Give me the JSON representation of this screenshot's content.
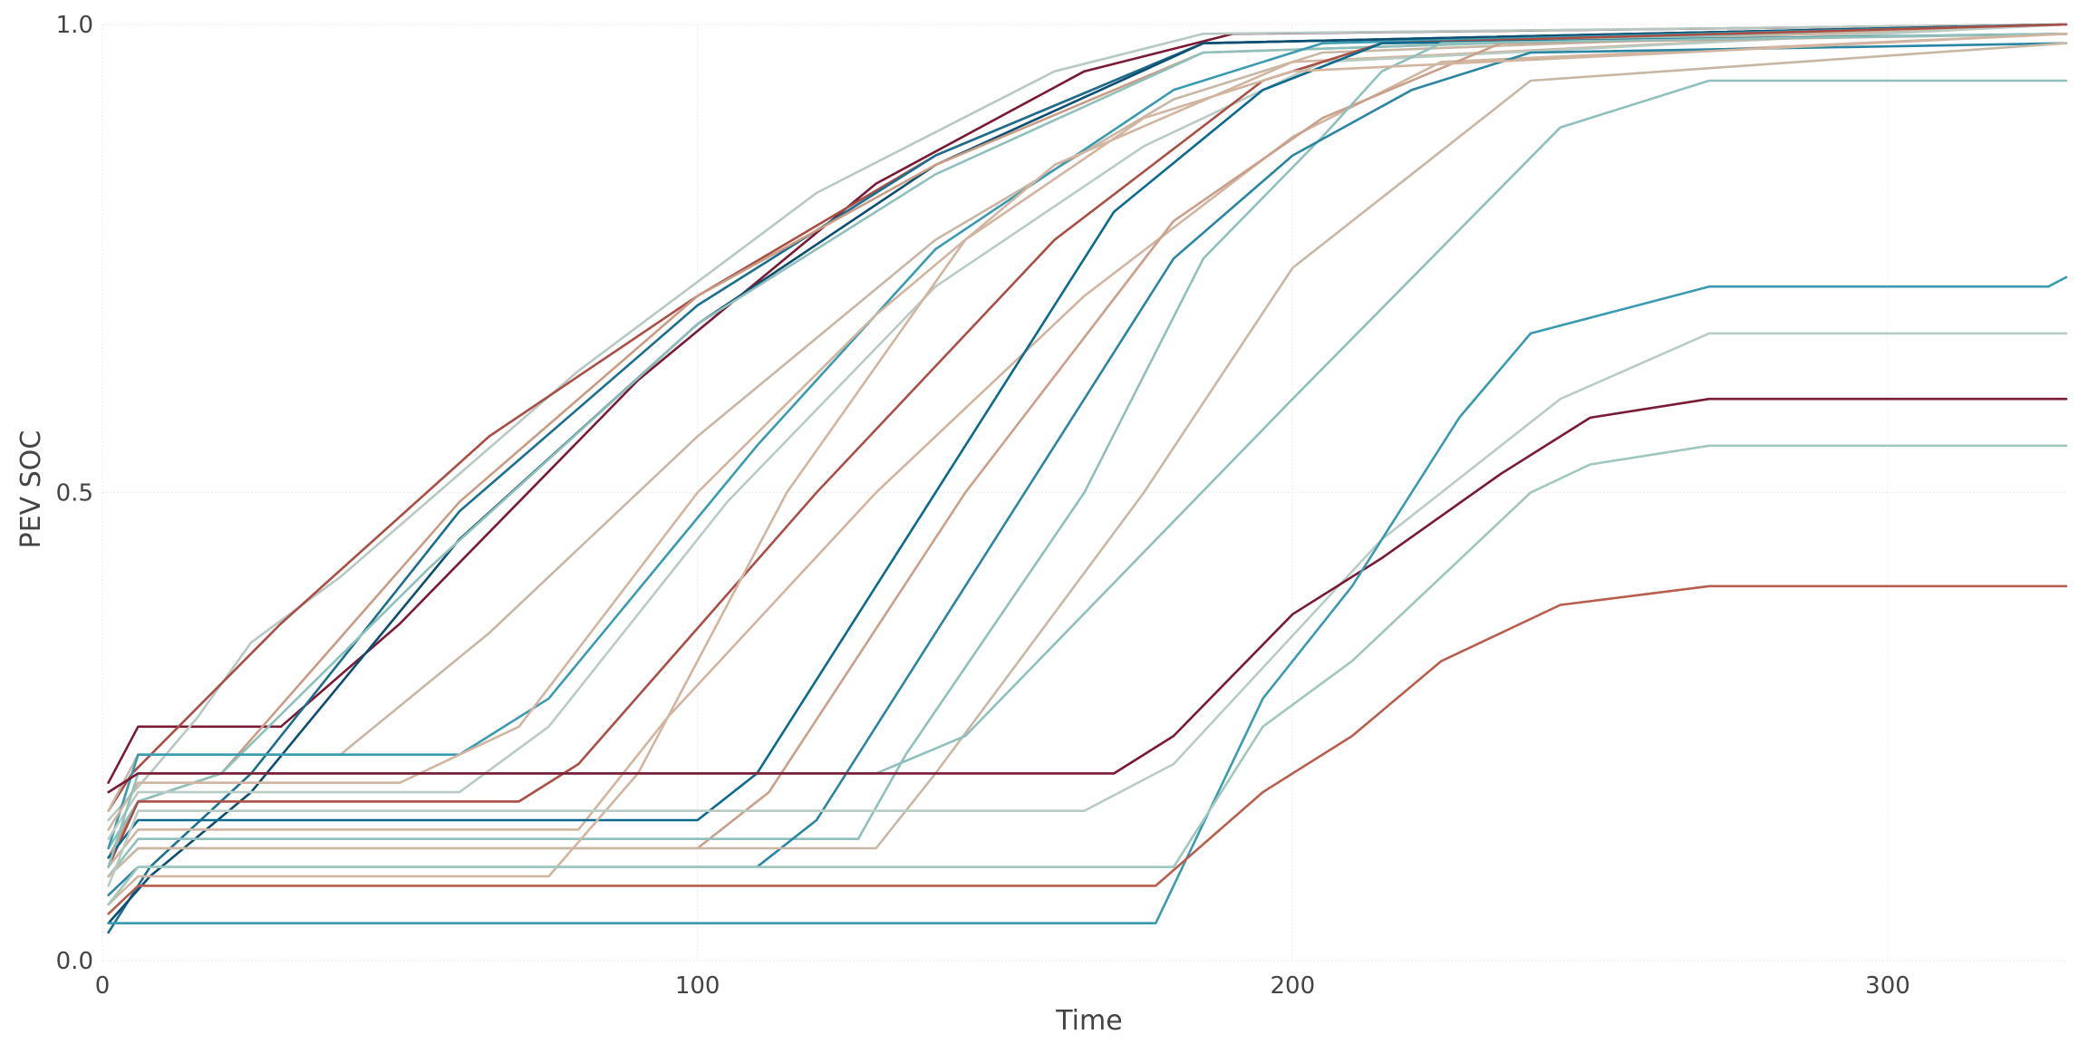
{
  "chart_data": {
    "type": "line",
    "title": "",
    "xlabel": "Time",
    "ylabel": "PEV SOC",
    "xlim": [
      0,
      330
    ],
    "ylim": [
      0,
      1
    ],
    "x_ticks": [
      0,
      100,
      200,
      300
    ],
    "y_ticks": [
      0,
      0.5,
      1
    ],
    "x_tick_labels": [
      "0",
      "100",
      "200",
      "300"
    ],
    "y_tick_labels": [
      "0.0",
      "0.5",
      "1.0"
    ],
    "grid": true,
    "legend": "none",
    "series": [
      {
        "color": "#7a1a35",
        "values": [
          [
            1,
            0.19
          ],
          [
            6,
            0.25
          ],
          [
            30,
            0.25
          ],
          [
            50,
            0.36
          ],
          [
            90,
            0.62
          ],
          [
            130,
            0.83
          ],
          [
            165,
            0.95
          ],
          [
            190,
            0.99
          ],
          [
            330,
            1.0
          ]
        ]
      },
      {
        "color": "#b8c9c2",
        "values": [
          [
            1,
            0.15
          ],
          [
            8,
            0.2
          ],
          [
            16,
            0.26
          ],
          [
            25,
            0.34
          ],
          [
            40,
            0.41
          ],
          [
            80,
            0.63
          ],
          [
            120,
            0.82
          ],
          [
            160,
            0.95
          ],
          [
            185,
            0.99
          ],
          [
            330,
            1.0
          ]
        ]
      },
      {
        "color": "#a94f45",
        "values": [
          [
            1,
            0.16
          ],
          [
            5,
            0.2
          ],
          [
            30,
            0.36
          ],
          [
            65,
            0.56
          ],
          [
            100,
            0.71
          ],
          [
            140,
            0.86
          ],
          [
            185,
            0.98
          ],
          [
            330,
            1.0
          ]
        ]
      },
      {
        "color": "#1b6f8f",
        "values": [
          [
            1,
            0.03
          ],
          [
            8,
            0.1
          ],
          [
            25,
            0.2
          ],
          [
            60,
            0.48
          ],
          [
            100,
            0.7
          ],
          [
            140,
            0.86
          ],
          [
            185,
            0.98
          ],
          [
            330,
            1.0
          ]
        ]
      },
      {
        "color": "#0c4f73",
        "values": [
          [
            1,
            0.04
          ],
          [
            8,
            0.09
          ],
          [
            25,
            0.18
          ],
          [
            60,
            0.45
          ],
          [
            100,
            0.68
          ],
          [
            140,
            0.85
          ],
          [
            185,
            0.98
          ],
          [
            330,
            1.0
          ]
        ]
      },
      {
        "color": "#c99c85",
        "values": [
          [
            1,
            0.11
          ],
          [
            6,
            0.17
          ],
          [
            20,
            0.2
          ],
          [
            60,
            0.49
          ],
          [
            100,
            0.71
          ],
          [
            140,
            0.85
          ],
          [
            185,
            0.97
          ],
          [
            330,
            1.0
          ]
        ]
      },
      {
        "color": "#8fc0bb",
        "values": [
          [
            1,
            0.12
          ],
          [
            6,
            0.17
          ],
          [
            20,
            0.2
          ],
          [
            55,
            0.42
          ],
          [
            100,
            0.68
          ],
          [
            140,
            0.84
          ],
          [
            185,
            0.97
          ],
          [
            330,
            1.0
          ]
        ]
      },
      {
        "color": "#c9b7a5",
        "values": [
          [
            1,
            0.16
          ],
          [
            6,
            0.22
          ],
          [
            40,
            0.22
          ],
          [
            65,
            0.35
          ],
          [
            100,
            0.56
          ],
          [
            140,
            0.77
          ],
          [
            180,
            0.92
          ],
          [
            205,
            0.97
          ],
          [
            330,
            1.0
          ]
        ]
      },
      {
        "color": "#3a9bb0",
        "values": [
          [
            1,
            0.12
          ],
          [
            6,
            0.22
          ],
          [
            60,
            0.22
          ],
          [
            75,
            0.28
          ],
          [
            110,
            0.55
          ],
          [
            140,
            0.76
          ],
          [
            180,
            0.93
          ],
          [
            205,
            0.98
          ],
          [
            330,
            1.0
          ]
        ]
      },
      {
        "color": "#d2b5a0",
        "values": [
          [
            1,
            0.14
          ],
          [
            6,
            0.19
          ],
          [
            50,
            0.19
          ],
          [
            70,
            0.25
          ],
          [
            100,
            0.5
          ],
          [
            130,
            0.69
          ],
          [
            160,
            0.85
          ],
          [
            200,
            0.96
          ],
          [
            330,
            1.0
          ]
        ]
      },
      {
        "color": "#b9ccc4",
        "values": [
          [
            1,
            0.13
          ],
          [
            6,
            0.18
          ],
          [
            60,
            0.18
          ],
          [
            75,
            0.25
          ],
          [
            105,
            0.49
          ],
          [
            140,
            0.72
          ],
          [
            175,
            0.87
          ],
          [
            205,
            0.96
          ],
          [
            330,
            1.0
          ]
        ]
      },
      {
        "color": "#a94f45",
        "values": [
          [
            1,
            0.1
          ],
          [
            6,
            0.17
          ],
          [
            70,
            0.17
          ],
          [
            80,
            0.21
          ],
          [
            120,
            0.5
          ],
          [
            160,
            0.77
          ],
          [
            195,
            0.94
          ],
          [
            215,
            0.98
          ],
          [
            330,
            1.0
          ]
        ]
      },
      {
        "color": "#d2b5a0",
        "values": [
          [
            1,
            0.1
          ],
          [
            6,
            0.14
          ],
          [
            80,
            0.14
          ],
          [
            95,
            0.26
          ],
          [
            130,
            0.5
          ],
          [
            165,
            0.71
          ],
          [
            200,
            0.88
          ],
          [
            225,
            0.96
          ],
          [
            330,
            0.99
          ]
        ]
      },
      {
        "color": "#0c6a8f",
        "values": [
          [
            1,
            0.11
          ],
          [
            6,
            0.15
          ],
          [
            100,
            0.15
          ],
          [
            110,
            0.2
          ],
          [
            140,
            0.5
          ],
          [
            170,
            0.8
          ],
          [
            195,
            0.93
          ],
          [
            215,
            0.98
          ],
          [
            330,
            0.99
          ]
        ]
      },
      {
        "color": "#c9a08a",
        "values": [
          [
            1,
            0.09
          ],
          [
            6,
            0.12
          ],
          [
            100,
            0.12
          ],
          [
            112,
            0.18
          ],
          [
            145,
            0.5
          ],
          [
            180,
            0.79
          ],
          [
            205,
            0.9
          ],
          [
            235,
            0.98
          ],
          [
            330,
            0.99
          ]
        ]
      },
      {
        "color": "#8fc0bb",
        "values": [
          [
            1,
            0.09
          ],
          [
            6,
            0.13
          ],
          [
            127,
            0.13
          ],
          [
            135,
            0.22
          ],
          [
            165,
            0.5
          ],
          [
            185,
            0.75
          ],
          [
            205,
            0.88
          ],
          [
            215,
            0.95
          ],
          [
            225,
            0.98
          ],
          [
            330,
            0.99
          ]
        ]
      },
      {
        "color": "#2a86a2",
        "values": [
          [
            1,
            0.07
          ],
          [
            6,
            0.1
          ],
          [
            110,
            0.1
          ],
          [
            120,
            0.15
          ],
          [
            150,
            0.45
          ],
          [
            180,
            0.75
          ],
          [
            200,
            0.86
          ],
          [
            220,
            0.93
          ],
          [
            240,
            0.97
          ],
          [
            330,
            0.98
          ]
        ]
      },
      {
        "color": "#c9b7a5",
        "values": [
          [
            1,
            0.09
          ],
          [
            6,
            0.12
          ],
          [
            130,
            0.12
          ],
          [
            140,
            0.2
          ],
          [
            175,
            0.5
          ],
          [
            200,
            0.74
          ],
          [
            220,
            0.84
          ],
          [
            240,
            0.94
          ],
          [
            330,
            0.98
          ]
        ]
      },
      {
        "color": "#8fc0bb",
        "values": [
          [
            1,
            0.1
          ],
          [
            6,
            0.2
          ],
          [
            130,
            0.2
          ],
          [
            145,
            0.24
          ],
          [
            200,
            0.6
          ],
          [
            245,
            0.89
          ],
          [
            270,
            0.94
          ],
          [
            330,
            0.94
          ]
        ]
      },
      {
        "color": "#d2b5a0",
        "values": [
          [
            1,
            0.06
          ],
          [
            6,
            0.09
          ],
          [
            75,
            0.09
          ],
          [
            90,
            0.2
          ],
          [
            115,
            0.5
          ],
          [
            145,
            0.77
          ],
          [
            175,
            0.9
          ],
          [
            200,
            0.95
          ],
          [
            330,
            0.99
          ]
        ]
      },
      {
        "color": "#b9ccc4",
        "values": [
          [
            1,
            0.08
          ],
          [
            6,
            0.16
          ],
          [
            165,
            0.16
          ],
          [
            180,
            0.21
          ],
          [
            215,
            0.45
          ],
          [
            245,
            0.6
          ],
          [
            270,
            0.67
          ],
          [
            330,
            0.67
          ]
        ]
      },
      {
        "color": "#7a1a35",
        "values": [
          [
            1,
            0.18
          ],
          [
            6,
            0.2
          ],
          [
            170,
            0.2
          ],
          [
            180,
            0.24
          ],
          [
            200,
            0.37
          ],
          [
            215,
            0.43
          ],
          [
            235,
            0.52
          ],
          [
            250,
            0.58
          ],
          [
            270,
            0.6
          ],
          [
            330,
            0.6
          ]
        ]
      },
      {
        "color": "#3a9bb0",
        "values": [
          [
            1,
            0.04
          ],
          [
            6,
            0.04
          ],
          [
            177,
            0.04
          ],
          [
            195,
            0.28
          ],
          [
            210,
            0.4
          ],
          [
            228,
            0.58
          ],
          [
            240,
            0.67
          ],
          [
            270,
            0.72
          ],
          [
            327,
            0.72
          ],
          [
            330,
            0.73
          ]
        ]
      },
      {
        "color": "#9fc7bd",
        "values": [
          [
            1,
            0.06
          ],
          [
            6,
            0.1
          ],
          [
            180,
            0.1
          ],
          [
            195,
            0.25
          ],
          [
            210,
            0.32
          ],
          [
            225,
            0.41
          ],
          [
            240,
            0.5
          ],
          [
            250,
            0.53
          ],
          [
            270,
            0.55
          ],
          [
            330,
            0.55
          ]
        ]
      },
      {
        "color": "#b85e4d",
        "values": [
          [
            1,
            0.05
          ],
          [
            6,
            0.08
          ],
          [
            177,
            0.08
          ],
          [
            195,
            0.18
          ],
          [
            210,
            0.24
          ],
          [
            225,
            0.32
          ],
          [
            245,
            0.38
          ],
          [
            270,
            0.4
          ],
          [
            330,
            0.4
          ]
        ]
      }
    ]
  }
}
